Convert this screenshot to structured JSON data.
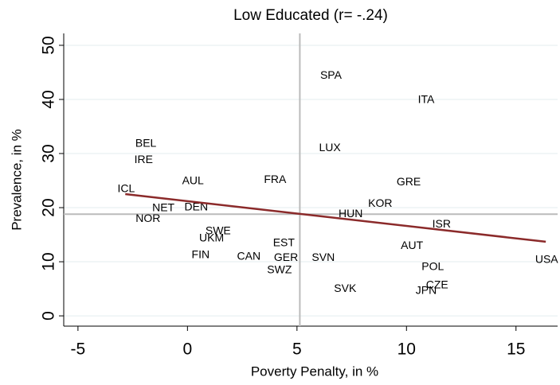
{
  "chart_data": {
    "type": "scatter",
    "title": "Low Educated (r= -.24)",
    "x_label": "Poverty Penalty, in %",
    "y_label": "Prevalence, in %",
    "labels": [
      "SPA",
      "ITA",
      "BEL",
      "LUX",
      "IRE",
      "AUL",
      "FRA",
      "GRE",
      "ICL",
      "KOR",
      "NET",
      "DEN",
      "HUN",
      "NOR",
      "ISR",
      "SWE",
      "UKM",
      "EST",
      "AUT",
      "FIN",
      "CAN",
      "GER",
      "SVN",
      "USA",
      "POL",
      "SWZ",
      "SVK",
      "CZE",
      "JPN"
    ],
    "x": [
      6.55,
      10.9,
      -1.9,
      6.5,
      -2.0,
      0.25,
      4.0,
      10.1,
      -2.8,
      8.8,
      -1.1,
      0.4,
      7.45,
      -1.8,
      11.6,
      1.4,
      1.1,
      4.4,
      10.25,
      0.6,
      2.8,
      4.5,
      6.2,
      16.4,
      11.2,
      4.2,
      7.2,
      11.4,
      10.9
    ],
    "y": [
      44.4,
      39.9,
      31.8,
      31.0,
      28.8,
      24.9,
      25.1,
      24.7,
      23.4,
      20.7,
      19.9,
      20.0,
      18.8,
      17.9,
      16.9,
      15.6,
      14.3,
      13.4,
      12.9,
      11.2,
      10.9,
      10.7,
      10.7,
      10.3,
      9.0,
      8.4,
      5.0,
      5.6,
      4.6
    ],
    "label_color": "#000000",
    "fit": {
      "x": [
        -2.84,
        16.36
      ],
      "y": [
        22.5,
        13.7
      ],
      "color": "#8b2a2a"
    },
    "xline": 5.13,
    "yline": 18.8,
    "refline_color": "#bbbbbb",
    "xlim": [
      -5.65,
      16.9
    ],
    "ylim": [
      -1.9,
      52.2
    ],
    "xticks": [
      -5,
      0,
      5,
      10,
      15
    ],
    "yticks": [
      0,
      10,
      20,
      30,
      40,
      50
    ],
    "grid": true
  }
}
